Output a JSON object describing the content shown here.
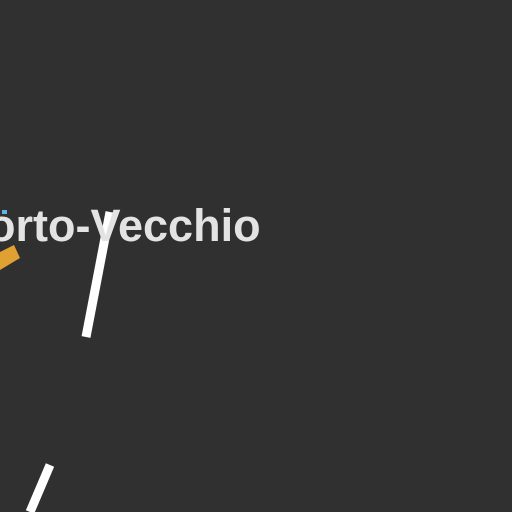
{
  "map": {
    "place_label": "Porto-Vecchio",
    "background_color": "#303030",
    "road_color": "#ffffff",
    "major_road_color": "#e0a032",
    "label_color": "#e3e3e3",
    "marker_color": "#5ab4e8"
  }
}
